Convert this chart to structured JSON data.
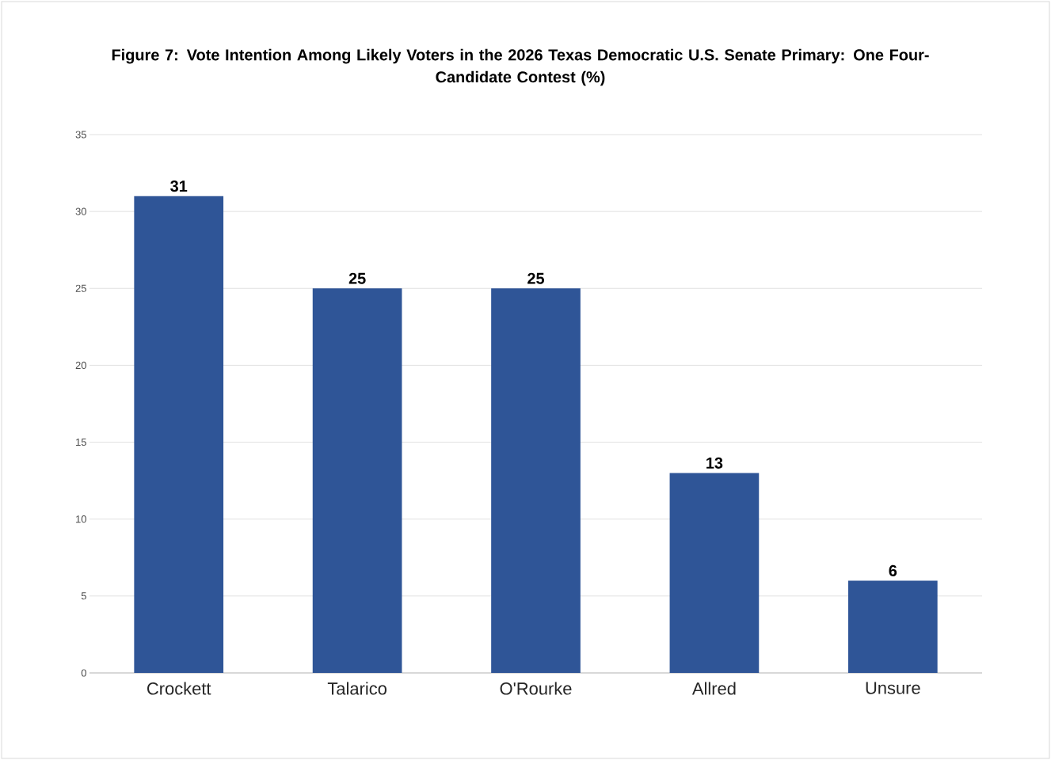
{
  "chart_data": {
    "type": "bar",
    "title": "Figure 7: Vote Intention Among Likely Voters in the 2026 Texas Democratic U.S. Senate Primary: One Four-Candidate Contest (%)",
    "categories": [
      "Crockett",
      "Talarico",
      "O'Rourke",
      "Allred",
      "Unsure"
    ],
    "values": [
      31,
      25,
      25,
      13,
      6
    ],
    "color": "#2f5597",
    "ylim": [
      0,
      35
    ],
    "yticks": [
      0,
      5,
      10,
      15,
      20,
      25,
      30,
      35
    ],
    "grid": "y",
    "data_labels": true
  }
}
